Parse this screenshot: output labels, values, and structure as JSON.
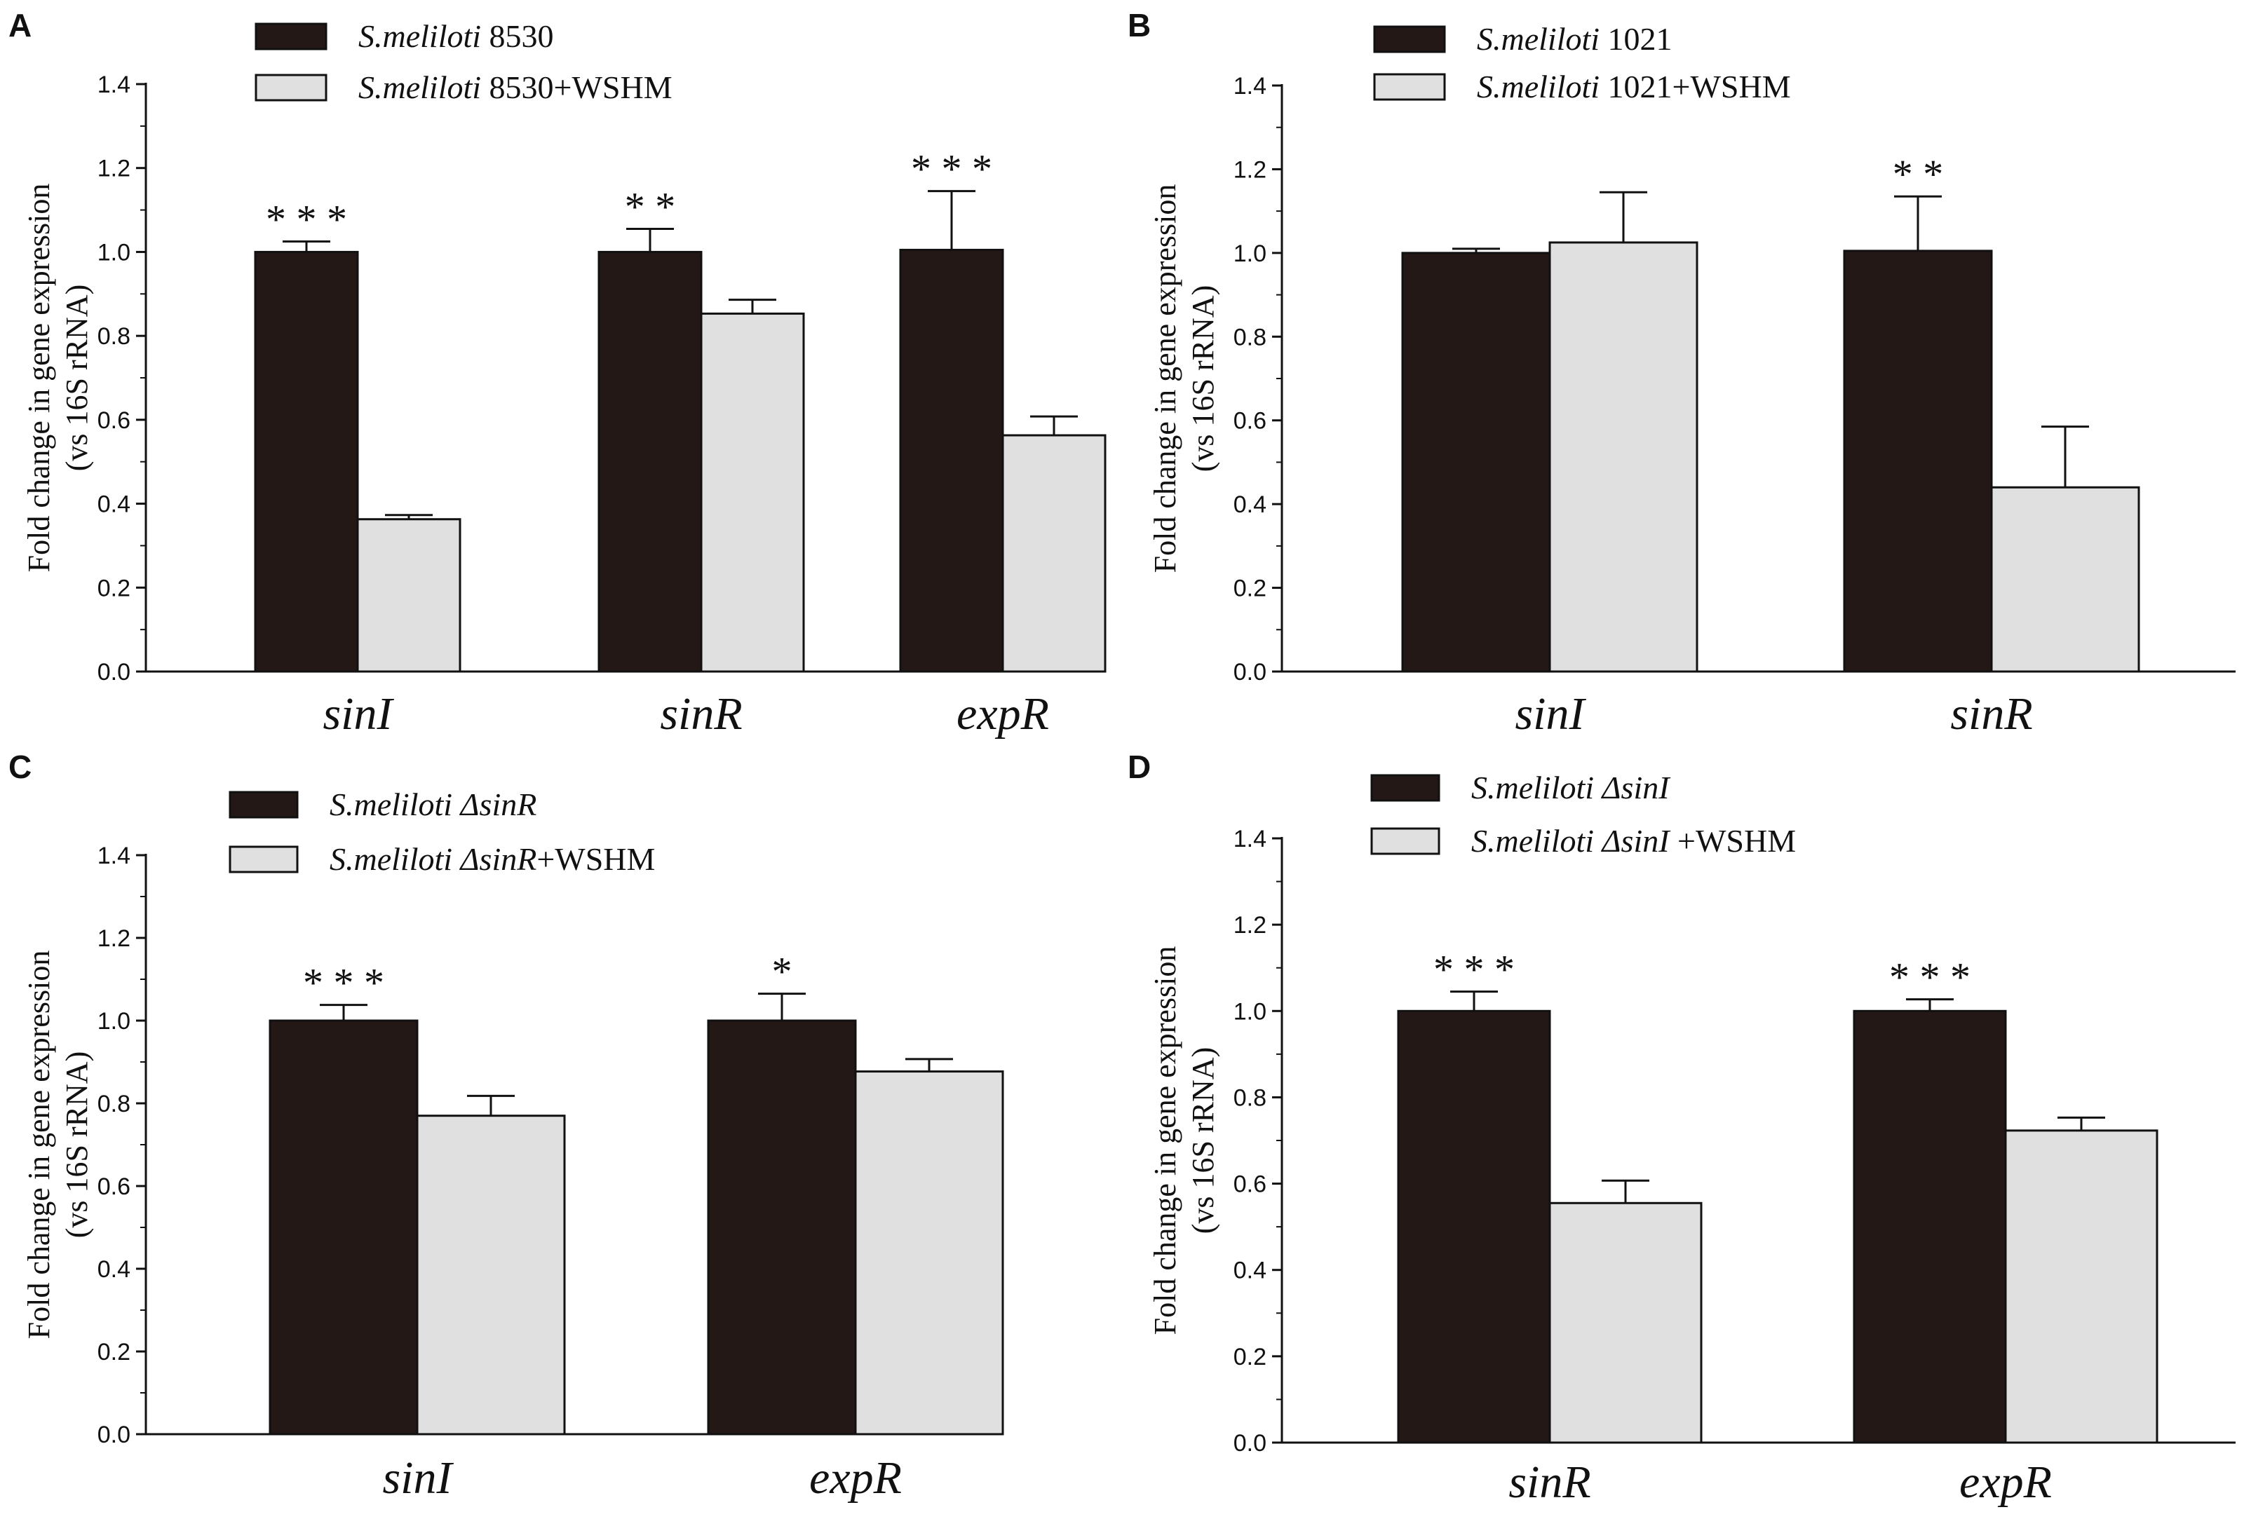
{
  "colors": {
    "control": "#231816",
    "treated": "#e0e0e0",
    "stroke": "#111111"
  },
  "chart_data": [
    {
      "panel": "A",
      "type": "bar",
      "ylabel": [
        "Fold change in gene expression",
        "(vs 16S rRNA)"
      ],
      "ylim": [
        0,
        1.4
      ],
      "yticks": [
        "0.0",
        "0.2",
        "0.4",
        "0.6",
        "0.8",
        "1.0",
        "1.2",
        "1.4"
      ],
      "categories": [
        "sinI",
        "sinR",
        "expR"
      ],
      "series": [
        {
          "name": "S.meliloti 8530",
          "name_italic": "S.meliloti",
          "name_rest": " 8530",
          "values": [
            1.0,
            1.0,
            1.005
          ],
          "errors": [
            0.025,
            0.055,
            0.14
          ]
        },
        {
          "name": "S.meliloti 8530+WSHM",
          "name_italic": "S.meliloti",
          "name_rest": " 8530+WSHM",
          "values": [
            0.363,
            0.853,
            0.563
          ],
          "errors": [
            0.01,
            0.033,
            0.045
          ]
        }
      ],
      "significance": [
        "***",
        "**",
        "***"
      ]
    },
    {
      "panel": "B",
      "type": "bar",
      "ylabel": [
        "Fold change in gene expression",
        "(vs 16S rRNA)"
      ],
      "ylim": [
        0,
        1.4
      ],
      "yticks": [
        "0.0",
        "0.2",
        "0.4",
        "0.6",
        "0.8",
        "1.0",
        "1.2",
        "1.4"
      ],
      "categories": [
        "sinI",
        "sinR"
      ],
      "series": [
        {
          "name": "S.meliloti 1021",
          "name_italic": "S.meliloti",
          "name_rest": " 1021",
          "values": [
            1.0,
            1.005
          ],
          "errors": [
            0.01,
            0.13
          ]
        },
        {
          "name": "S.meliloti 1021+WSHM",
          "name_italic": "S.meliloti",
          "name_rest": " 1021+WSHM",
          "values": [
            1.025,
            0.44
          ],
          "errors": [
            0.12,
            0.145
          ]
        }
      ],
      "significance": [
        "",
        "**"
      ]
    },
    {
      "panel": "C",
      "type": "bar",
      "ylabel": [
        "Fold change in gene expression",
        "(vs 16S rRNA)"
      ],
      "ylim": [
        0,
        1.4
      ],
      "yticks": [
        "0.0",
        "0.2",
        "0.4",
        "0.6",
        "0.8",
        "1.0",
        "1.2",
        "1.4"
      ],
      "categories": [
        "sinI",
        "expR"
      ],
      "series": [
        {
          "name": "S.meliloti ΔsinR",
          "name_italic": "S.meliloti ΔsinR",
          "name_rest": "",
          "values": [
            1.0,
            1.0
          ],
          "errors": [
            0.038,
            0.065
          ]
        },
        {
          "name": "S.meliloti ΔsinR+WSHM",
          "name_italic": "S.meliloti ΔsinR",
          "name_rest": "+WSHM",
          "values": [
            0.77,
            0.877
          ],
          "errors": [
            0.048,
            0.03
          ]
        }
      ],
      "significance": [
        "***",
        "*"
      ]
    },
    {
      "panel": "D",
      "type": "bar",
      "ylabel": [
        "Fold change in gene expression",
        "(vs 16S rRNA)"
      ],
      "ylim": [
        0,
        1.4
      ],
      "yticks": [
        "0.0",
        "0.2",
        "0.4",
        "0.6",
        "0.8",
        "1.0",
        "1.2",
        "1.4"
      ],
      "categories": [
        "sinR",
        "expR"
      ],
      "series": [
        {
          "name": "S.meliloti ΔsinI",
          "name_italic": "S.meliloti ΔsinI",
          "name_rest": "",
          "values": [
            1.0,
            1.0
          ],
          "errors": [
            0.045,
            0.027
          ]
        },
        {
          "name": "S.meliloti ΔsinI +WSHM",
          "name_italic": "S.meliloti ΔsinI",
          "name_rest": " +WSHM",
          "values": [
            0.555,
            0.723
          ],
          "errors": [
            0.052,
            0.03
          ]
        }
      ],
      "significance": [
        "***",
        "***"
      ]
    }
  ]
}
